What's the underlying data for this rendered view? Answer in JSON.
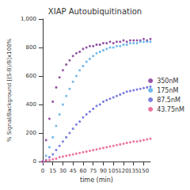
{
  "chart_data": {
    "type": "scatter",
    "title": "XIAP Autoubiquitination",
    "x_label": "time (min)",
    "y_label": "% Signal/Background [(S-B)/B]x100%",
    "x": [
      0,
      5,
      10,
      15,
      20,
      25,
      30,
      35,
      40,
      45,
      50,
      55,
      60,
      65,
      70,
      75,
      80,
      85,
      90,
      95,
      100,
      105,
      110,
      115,
      120,
      125,
      130,
      135,
      140,
      145,
      150,
      155,
      160
    ],
    "series": [
      {
        "name": "350nM",
        "color": "#7b2a8f",
        "values": [
          0,
          150,
          300,
          420,
          520,
          590,
          640,
          680,
          710,
          740,
          760,
          770,
          790,
          800,
          810,
          810,
          820,
          820,
          830,
          830,
          840,
          830,
          840,
          840,
          850,
          840,
          850,
          850,
          850,
          850,
          860,
          850,
          860
        ]
      },
      {
        "name": "175nM",
        "color": "#4ea6e6",
        "values": [
          0,
          40,
          100,
          170,
          250,
          330,
          400,
          460,
          510,
          560,
          600,
          640,
          670,
          700,
          720,
          740,
          760,
          770,
          780,
          790,
          800,
          800,
          810,
          810,
          820,
          820,
          830,
          830,
          830,
          840,
          840,
          840,
          840
        ]
      },
      {
        "name": "87.5nM",
        "color": "#5a5cd8",
        "values": [
          0,
          10,
          30,
          50,
          80,
          110,
          140,
          170,
          200,
          230,
          260,
          280,
          310,
          330,
          350,
          370,
          390,
          400,
          420,
          430,
          440,
          450,
          460,
          470,
          480,
          490,
          495,
          500,
          505,
          510,
          515,
          520,
          525
        ]
      },
      {
        "name": "43.75nM",
        "color": "#e8508a",
        "values": [
          0,
          5,
          10,
          15,
          20,
          30,
          35,
          40,
          45,
          50,
          55,
          60,
          65,
          70,
          75,
          80,
          85,
          90,
          95,
          100,
          105,
          110,
          115,
          120,
          125,
          130,
          135,
          140,
          140,
          145,
          150,
          155,
          160
        ]
      }
    ],
    "xlim": [
      0,
      160
    ],
    "xticks": [
      0,
      15,
      30,
      45,
      60,
      75,
      90,
      105,
      120,
      135,
      150
    ],
    "ylim": [
      0,
      1000
    ],
    "yticks": [
      0,
      200,
      400,
      600,
      800,
      1000
    ],
    "grid": false,
    "legend": "right",
    "marker": "circle"
  }
}
